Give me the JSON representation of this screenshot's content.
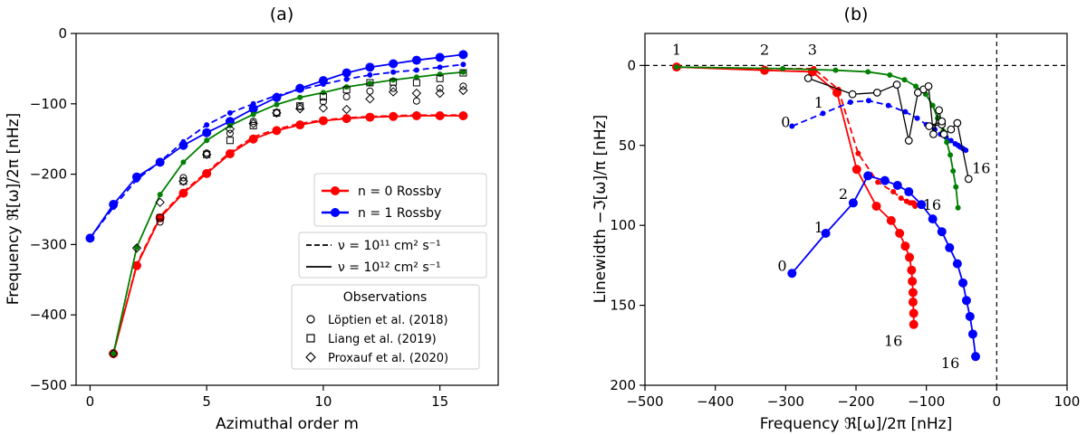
{
  "chart_data": [
    {
      "type": "line",
      "title": "(a)",
      "xlabel": "Azimuthal order m",
      "ylabel": "Frequency ℜ[ω]/2π [nHz]",
      "xlim": [
        -0.6,
        17.5
      ],
      "ylim": [
        -500,
        0
      ],
      "xticks": [
        0,
        5,
        10,
        15
      ],
      "yticks": [
        0,
        -100,
        -200,
        -300,
        -400,
        -500
      ],
      "series": [
        {
          "name": "n=0 Rossby ν=1e12",
          "color": "#ff0000",
          "style": "solid",
          "marker": "circle",
          "x": [
            1,
            2,
            3,
            4,
            5,
            6,
            7,
            8,
            9,
            10,
            11,
            12,
            13,
            14,
            15,
            16
          ],
          "y": [
            -455,
            -330,
            -262,
            -227,
            -199,
            -171,
            -150,
            -138,
            -130,
            -124,
            -121,
            -119,
            -118,
            -117,
            -117,
            -117
          ]
        },
        {
          "name": "n=0 Rossby ν=1e11",
          "color": "#ff0000",
          "style": "dashed",
          "marker": "none",
          "x": [
            1,
            2,
            3,
            4,
            5,
            6,
            7,
            8,
            9,
            10,
            11,
            12,
            13,
            14,
            15,
            16
          ],
          "y": [
            -455,
            -328,
            -260,
            -225,
            -197,
            -169,
            -147,
            -136,
            -128,
            -123,
            -120,
            -118,
            -117,
            -116,
            -116,
            -116
          ]
        },
        {
          "name": "n=1 Rossby ν=1e12",
          "color": "#0000ff",
          "style": "solid",
          "marker": "circle",
          "x": [
            0,
            1,
            2,
            3,
            4,
            5,
            6,
            7,
            8,
            9,
            10,
            11,
            12,
            13,
            14,
            15,
            16
          ],
          "y": [
            -291,
            -243,
            -204,
            -183,
            -159,
            -141,
            -125,
            -107,
            -91,
            -78,
            -67,
            -56,
            -48,
            -43,
            -38,
            -34,
            -30
          ]
        },
        {
          "name": "n=1 Rossby ν=1e11",
          "color": "#0000ff",
          "style": "dashed",
          "marker": "smalldot",
          "x": [
            0,
            1,
            2,
            3,
            4,
            5,
            6,
            7,
            8,
            9,
            10,
            11,
            12,
            13,
            14,
            15,
            16
          ],
          "y": [
            -291,
            -247,
            -208,
            -182,
            -154,
            -130,
            -113,
            -100,
            -88,
            -80,
            -72,
            -65,
            -59,
            -55,
            -52,
            -48,
            -44
          ]
        },
        {
          "name": "green ν=1e12",
          "color": "#008000",
          "style": "solid",
          "marker": "smalldot",
          "x": [
            1,
            2,
            3,
            4,
            5,
            6,
            7,
            8,
            9,
            10,
            11,
            12,
            13,
            14,
            15,
            16
          ],
          "y": [
            -455,
            -304,
            -229,
            -183,
            -152,
            -131,
            -115,
            -101,
            -91,
            -84,
            -76,
            -71,
            -66,
            -62,
            -58,
            -55
          ]
        }
      ],
      "observations": [
        {
          "label": "Löptien et al. (2018)",
          "marker": "circle",
          "points": [
            [
              3,
              -268
            ],
            [
              4,
              -205
            ],
            [
              5,
              -170
            ],
            [
              6,
              -142
            ],
            [
              7,
              -125
            ],
            [
              8,
              -112
            ],
            [
              9,
              -104
            ],
            [
              10,
              -97
            ],
            [
              11,
              -90
            ],
            [
              12,
              -82
            ],
            [
              13,
              -78
            ],
            [
              14,
              -96
            ],
            [
              15,
              -78
            ],
            [
              16,
              -75
            ]
          ]
        },
        {
          "label": "Liang et al. (2019)",
          "marker": "square",
          "points": [
            [
              3,
              -262
            ],
            [
              4,
              -210
            ],
            [
              5,
              -172
            ],
            [
              6,
              -152
            ],
            [
              7,
              -131
            ],
            [
              8,
              -113
            ],
            [
              9,
              -103
            ],
            [
              10,
              -90
            ],
            [
              11,
              -80
            ],
            [
              12,
              -70
            ],
            [
              13,
              -69
            ],
            [
              14,
              -70
            ],
            [
              15,
              -64
            ],
            [
              16,
              -56
            ]
          ]
        },
        {
          "label": "Proxauf et al. (2020)",
          "marker": "diamond",
          "points": [
            [
              1,
              -455
            ],
            [
              2,
              -305
            ],
            [
              3,
              -240
            ],
            [
              4,
              -210
            ],
            [
              5,
              -172
            ],
            [
              6,
              -136
            ],
            [
              7,
              -128
            ],
            [
              8,
              -113
            ],
            [
              9,
              -107
            ],
            [
              10,
              -106
            ],
            [
              11,
              -108
            ],
            [
              12,
              -93
            ],
            [
              13,
              -83
            ],
            [
              14,
              -85
            ],
            [
              15,
              -85
            ],
            [
              16,
              -81
            ]
          ]
        }
      ],
      "legend": {
        "series": [
          "n = 0 Rossby",
          "n = 1 Rossby"
        ],
        "viscosity": [
          "ν = 10¹¹ cm² s⁻¹",
          "ν = 10¹²  cm² s⁻¹"
        ],
        "observations_title": "Observations"
      }
    },
    {
      "type": "line",
      "title": "(b)",
      "xlabel": "Frequency ℜ[ω]/2π [nHz]",
      "ylabel": "Linewidth −ℑ[ω]/π [nHz]",
      "xlim": [
        -500,
        100
      ],
      "ylim": [
        200,
        -20
      ],
      "xticks": [
        -500,
        -400,
        -300,
        -200,
        -100,
        0,
        100
      ],
      "yticks": [
        0,
        50,
        100,
        150,
        200
      ],
      "series": [
        {
          "name": "red n=0 ν=1e12",
          "color": "#ff0000",
          "style": "solid",
          "marker": "circle",
          "points": [
            [
              -455,
              1
            ],
            [
              -330,
              3
            ],
            [
              -262,
              4
            ],
            [
              -227,
              17
            ],
            [
              -199,
              65
            ],
            [
              -171,
              88
            ],
            [
              -150,
              97
            ],
            [
              -138,
              105
            ],
            [
              -130,
              113
            ],
            [
              -124,
              120
            ],
            [
              -121,
              128
            ],
            [
              -120,
              135
            ],
            [
              -119,
              142
            ],
            [
              -119,
              148
            ],
            [
              -118,
              155
            ],
            [
              -118,
              162
            ]
          ]
        },
        {
          "name": "red n=0 ν=1e11",
          "color": "#ff0000",
          "style": "dashed",
          "marker": "smalldot",
          "points": [
            [
              -455,
              1
            ],
            [
              -330,
              2
            ],
            [
              -260,
              2
            ],
            [
              -225,
              15
            ],
            [
              -197,
              55
            ],
            [
              -169,
              73
            ],
            [
              -147,
              79
            ],
            [
              -136,
              83
            ],
            [
              -128,
              85
            ],
            [
              -123,
              86
            ],
            [
              -120,
              86
            ],
            [
              -118,
              86
            ],
            [
              -117,
              87
            ],
            [
              -116,
              87
            ],
            [
              -116,
              87
            ],
            [
              -116,
              88
            ]
          ]
        },
        {
          "name": "blue n=1 ν=1e12",
          "color": "#0000ff",
          "style": "solid",
          "marker": "circle",
          "points": [
            [
              -291,
              130
            ],
            [
              -243,
              105
            ],
            [
              -204,
              86
            ],
            [
              -183,
              69
            ],
            [
              -159,
              72
            ],
            [
              -141,
              75
            ],
            [
              -125,
              79
            ],
            [
              -107,
              87
            ],
            [
              -91,
              96
            ],
            [
              -78,
              104
            ],
            [
              -67,
              114
            ],
            [
              -56,
              124
            ],
            [
              -48,
              136
            ],
            [
              -43,
              147
            ],
            [
              -38,
              157
            ],
            [
              -34,
              168
            ],
            [
              -30,
              182
            ]
          ]
        },
        {
          "name": "blue n=1 ν=1e11",
          "color": "#0000ff",
          "style": "dashed",
          "marker": "smalldot",
          "points": [
            [
              -291,
              38
            ],
            [
              -247,
              30
            ],
            [
              -208,
              23
            ],
            [
              -182,
              22
            ],
            [
              -154,
              25
            ],
            [
              -130,
              29
            ],
            [
              -113,
              33
            ],
            [
              -100,
              37
            ],
            [
              -88,
              40
            ],
            [
              -80,
              43
            ],
            [
              -72,
              45
            ],
            [
              -65,
              47
            ],
            [
              -59,
              49
            ],
            [
              -55,
              50
            ],
            [
              -52,
              51
            ],
            [
              -48,
              52
            ],
            [
              -44,
              53
            ]
          ]
        },
        {
          "name": "green",
          "color": "#008000",
          "style": "solid",
          "marker": "smalldot",
          "points": [
            [
              -455,
              1
            ],
            [
              -304,
              2
            ],
            [
              -229,
              3
            ],
            [
              -183,
              4
            ],
            [
              -152,
              6
            ],
            [
              -131,
              9
            ],
            [
              -115,
              13
            ],
            [
              -101,
              18
            ],
            [
              -91,
              25
            ],
            [
              -84,
              33
            ],
            [
              -76,
              41
            ],
            [
              -71,
              48
            ],
            [
              -66,
              56
            ],
            [
              -62,
              66
            ],
            [
              -58,
              76
            ],
            [
              -55,
              89
            ]
          ]
        },
        {
          "name": "black observations",
          "color": "#000000",
          "style": "solid",
          "marker": "opencircle",
          "points": [
            [
              -268,
              8
            ],
            [
              -205,
              18
            ],
            [
              -170,
              17
            ],
            [
              -142,
              12
            ],
            [
              -125,
              47
            ],
            [
              -112,
              17
            ],
            [
              -104,
              15
            ],
            [
              -97,
              13
            ],
            [
              -90,
              43
            ],
            [
              -82,
              28
            ],
            [
              -78,
              37
            ],
            [
              -96,
              38
            ],
            [
              -78,
              35
            ],
            [
              -75,
              43
            ],
            [
              -65,
              40
            ],
            [
              -56,
              36
            ],
            [
              -40,
              71
            ]
          ]
        }
      ],
      "annotations": [
        {
          "text": "1",
          "x": -455,
          "y": -10,
          "color": "#ff0000"
        },
        {
          "text": "2",
          "x": -330,
          "y": -10,
          "color": "#ff0000"
        },
        {
          "text": "3",
          "x": -262,
          "y": -10,
          "color": "#ff0000"
        },
        {
          "text": "16",
          "x": -92,
          "y": 87,
          "color": "#ff0000"
        },
        {
          "text": "16",
          "x": -147,
          "y": 172,
          "color": "#ff0000"
        },
        {
          "text": "0",
          "x": -300,
          "y": 35,
          "color": "#0000ff"
        },
        {
          "text": "1",
          "x": -253,
          "y": 23,
          "color": "#0000ff"
        },
        {
          "text": "16",
          "x": -22,
          "y": 64,
          "color": "#0000ff"
        },
        {
          "text": "0",
          "x": -305,
          "y": 125,
          "color": "#0000ff"
        },
        {
          "text": "1",
          "x": -253,
          "y": 101,
          "color": "#0000ff"
        },
        {
          "text": "2",
          "x": -218,
          "y": 80,
          "color": "#0000ff"
        },
        {
          "text": "16",
          "x": -66,
          "y": 186,
          "color": "#0000ff"
        }
      ]
    }
  ]
}
